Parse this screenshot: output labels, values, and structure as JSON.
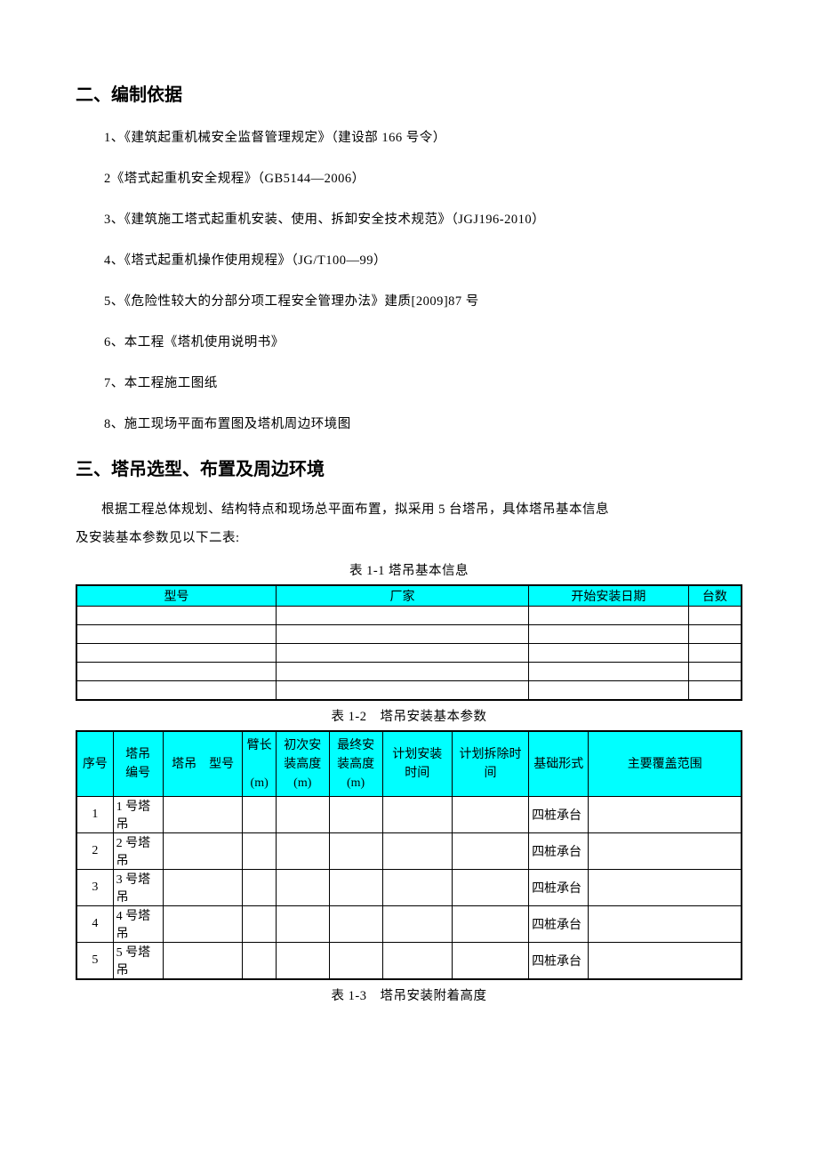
{
  "section2": {
    "heading": "二、编制依据",
    "items": [
      "1、《建筑起重机械安全监督管理规定》（建设部 166 号令）",
      "2《塔式起重机安全规程》（GB5144—2006）",
      "3、《建筑施工塔式起重机安装、使用、拆卸安全技术规范》（JGJ196-2010）",
      "4、《塔式起重机操作使用规程》（JG/T100—99）",
      "5、《危险性较大的分部分项工程安全管理办法》建质[2009]87 号",
      "6、本工程《塔机使用说明书》",
      "7、本工程施工图纸",
      "8、施工现场平面布置图及塔机周边环境图"
    ]
  },
  "section3": {
    "heading": "三、塔吊选型、布置及周边环境",
    "intro_line1": "根据工程总体规划、结构特点和现场总平面布置，拟采用 5 台塔吊，具体塔吊基本信息",
    "intro_line2": "及安装基本参数见以下二表:"
  },
  "table1": {
    "caption": "表 1-1 塔吊基本信息",
    "columns": [
      "型号",
      "厂家",
      "开始安装日期",
      "台数"
    ],
    "rows": [
      [
        "",
        "",
        "",
        ""
      ],
      [
        "",
        "",
        "",
        ""
      ],
      [
        "",
        "",
        "",
        ""
      ],
      [
        "",
        "",
        "",
        ""
      ],
      [
        "",
        "",
        "",
        ""
      ]
    ],
    "col_widths": [
      "30%",
      "38%",
      "24%",
      "8%"
    ]
  },
  "table2": {
    "caption": "表 1-2 塔吊安装基本参数",
    "columns": [
      "序号",
      "塔吊\n编号",
      "塔吊 型号",
      "臂长\n\n(m)",
      "初次安\n装高度\n(m)",
      "最终安\n装高度\n(m)",
      "计划安装\n时间",
      "计划拆除时\n间",
      "基础形式",
      "主要覆盖范围"
    ],
    "col_widths": [
      "5.5%",
      "7.5%",
      "12%",
      "5%",
      "8%",
      "8%",
      "10.5%",
      "11.5%",
      "9%",
      "23%"
    ],
    "rows": [
      {
        "seq": "1",
        "num": "1 号塔吊",
        "model": "",
        "arm": "",
        "h1": "",
        "h2": "",
        "t1": "",
        "t2": "",
        "base": "四桩承台",
        "range": ""
      },
      {
        "seq": "2",
        "num": "2 号塔吊",
        "model": "",
        "arm": "",
        "h1": "",
        "h2": "",
        "t1": "",
        "t2": "",
        "base": "四桩承台",
        "range": ""
      },
      {
        "seq": "3",
        "num": "3 号塔吊",
        "model": "",
        "arm": "",
        "h1": "",
        "h2": "",
        "t1": "",
        "t2": "",
        "base": "四桩承台",
        "range": ""
      },
      {
        "seq": "4",
        "num": "4 号塔吊",
        "model": "",
        "arm": "",
        "h1": "",
        "h2": "",
        "t1": "",
        "t2": "",
        "base": "四桩承台",
        "range": ""
      },
      {
        "seq": "5",
        "num": "5 号塔吊",
        "model": "",
        "arm": "",
        "h1": "",
        "h2": "",
        "t1": "",
        "t2": "",
        "base": "四桩承台",
        "range": ""
      }
    ]
  },
  "table3": {
    "caption": "表 1-3 塔吊安装附着高度"
  },
  "colors": {
    "header_bg": "#00ffff",
    "border": "#000000",
    "background": "#ffffff"
  }
}
